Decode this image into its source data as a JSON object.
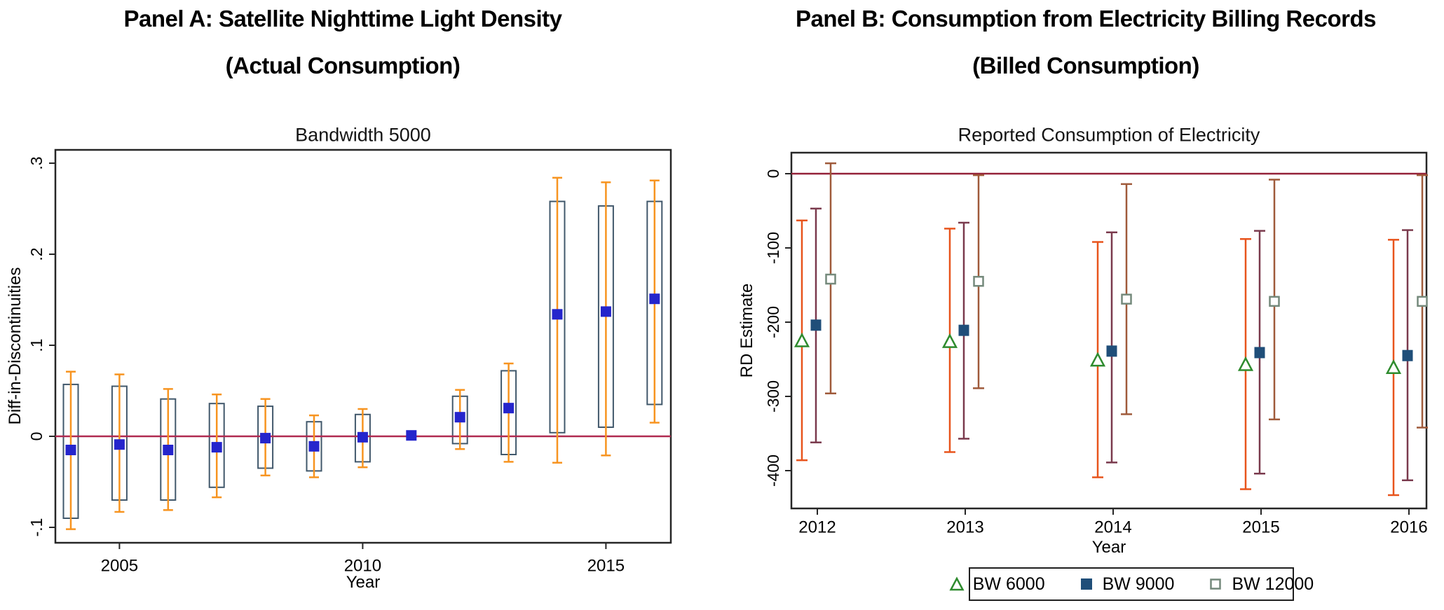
{
  "figure": {
    "background": "#ffffff"
  },
  "chart_data": [
    {
      "panel": "A",
      "type": "box-whisker",
      "panel_title_line1": "Panel A: Satellite Nighttime Light Density",
      "panel_title_line2": "(Actual Consumption)",
      "title": "Bandwidth 5000",
      "xlabel": "Year",
      "ylabel": "Diff-in-Discontinuities",
      "ylim": [
        -0.12,
        0.31
      ],
      "yticks": [
        {
          "v": 0.3,
          "label": ".3"
        },
        {
          "v": 0.2,
          "label": ".2"
        },
        {
          "v": 0.1,
          "label": ".1"
        },
        {
          "v": 0.0,
          "label": "0"
        },
        {
          "v": -0.1,
          "label": "-.1"
        }
      ],
      "xticks": [
        {
          "v": 2005,
          "label": "2005"
        },
        {
          "v": 2010,
          "label": "2010"
        },
        {
          "v": 2015,
          "label": "2015"
        }
      ],
      "ref_line_y": 0,
      "colors": {
        "whisker": "#f79420",
        "box_outline": "#41586b",
        "marker": "#2525cc",
        "ref_line": "#b02a50",
        "axis": "#262626"
      },
      "points": [
        {
          "year": 2004,
          "est": -0.015,
          "box": [
            -0.09,
            0.057
          ],
          "whisker": [
            -0.102,
            0.071
          ]
        },
        {
          "year": 2005,
          "est": -0.009,
          "box": [
            -0.07,
            0.055
          ],
          "whisker": [
            -0.083,
            0.068
          ]
        },
        {
          "year": 2006,
          "est": -0.015,
          "box": [
            -0.07,
            0.041
          ],
          "whisker": [
            -0.081,
            0.052
          ]
        },
        {
          "year": 2007,
          "est": -0.012,
          "box": [
            -0.056,
            0.036
          ],
          "whisker": [
            -0.067,
            0.046
          ]
        },
        {
          "year": 2008,
          "est": -0.002,
          "box": [
            -0.035,
            0.033
          ],
          "whisker": [
            -0.043,
            0.041
          ]
        },
        {
          "year": 2009,
          "est": -0.011,
          "box": [
            -0.038,
            0.016
          ],
          "whisker": [
            -0.045,
            0.023
          ]
        },
        {
          "year": 2010,
          "est": -0.001,
          "box": [
            -0.028,
            0.024
          ],
          "whisker": [
            -0.034,
            0.03
          ]
        },
        {
          "year": 2011,
          "est": 0.001,
          "box": null,
          "whisker": null
        },
        {
          "year": 2012,
          "est": 0.021,
          "box": [
            -0.008,
            0.044
          ],
          "whisker": [
            -0.014,
            0.051
          ]
        },
        {
          "year": 2013,
          "est": 0.031,
          "box": [
            -0.02,
            0.072
          ],
          "whisker": [
            -0.028,
            0.08
          ]
        },
        {
          "year": 2014,
          "est": 0.134,
          "box": [
            0.004,
            0.258
          ],
          "whisker": [
            -0.029,
            0.284
          ]
        },
        {
          "year": 2015,
          "est": 0.137,
          "box": [
            0.01,
            0.253
          ],
          "whisker": [
            -0.021,
            0.279
          ]
        },
        {
          "year": 2016,
          "est": 0.151,
          "box": [
            0.035,
            0.258
          ],
          "whisker": [
            0.015,
            0.281
          ]
        }
      ]
    },
    {
      "panel": "B",
      "type": "grouped-error-bars",
      "panel_title_line1": "Panel B: Consumption from Electricity Billing Records",
      "panel_title_line2": "(Billed Consumption)",
      "title": "Reported Consumption of Electricity",
      "xlabel": "Year",
      "ylabel": "RD Estimate",
      "ylim": [
        -450,
        25
      ],
      "yticks": [
        {
          "v": 0,
          "label": "0"
        },
        {
          "v": -100,
          "label": "-100"
        },
        {
          "v": -200,
          "label": "-200"
        },
        {
          "v": -300,
          "label": "-300"
        },
        {
          "v": -400,
          "label": "-400"
        }
      ],
      "xticks": [
        {
          "v": 2012,
          "label": "2012"
        },
        {
          "v": 2013,
          "label": "2013"
        },
        {
          "v": 2014,
          "label": "2014"
        },
        {
          "v": 2015,
          "label": "2015"
        },
        {
          "v": 2016,
          "label": "2016"
        }
      ],
      "ref_line_y": 0,
      "colors": {
        "ref_line": "#942138",
        "axis": "#262626"
      },
      "legend_position": "bottom-center",
      "series": [
        {
          "name": "BW 6000",
          "marker": "open-triangle",
          "marker_color": "#2e8b2e",
          "bar_color": "#e8541c",
          "points": [
            {
              "year": 2012,
              "est": -226,
              "ci": [
                -386,
                -63
              ]
            },
            {
              "year": 2013,
              "est": -227,
              "ci": [
                -375,
                -74
              ]
            },
            {
              "year": 2014,
              "est": -252,
              "ci": [
                -409,
                -92
              ]
            },
            {
              "year": 2015,
              "est": -258,
              "ci": [
                -425,
                -88
              ]
            },
            {
              "year": 2016,
              "est": -262,
              "ci": [
                -433,
                -89
              ]
            }
          ]
        },
        {
          "name": "BW 9000",
          "marker": "filled-square",
          "marker_color": "#1f4e79",
          "bar_color": "#7a3a4d",
          "points": [
            {
              "year": 2012,
              "est": -204,
              "ci": [
                -362,
                -47
              ]
            },
            {
              "year": 2013,
              "est": -211,
              "ci": [
                -357,
                -66
              ]
            },
            {
              "year": 2014,
              "est": -239,
              "ci": [
                -389,
                -79
              ]
            },
            {
              "year": 2015,
              "est": -241,
              "ci": [
                -404,
                -77
              ]
            },
            {
              "year": 2016,
              "est": -245,
              "ci": [
                -413,
                -76
              ]
            }
          ]
        },
        {
          "name": "BW 12000",
          "marker": "open-square",
          "marker_color": "#74897b",
          "bar_color": "#9f5a3a",
          "points": [
            {
              "year": 2012,
              "est": -142,
              "ci": [
                -296,
                14
              ]
            },
            {
              "year": 2013,
              "est": -145,
              "ci": [
                -289,
                -2
              ]
            },
            {
              "year": 2014,
              "est": -169,
              "ci": [
                -324,
                -14
              ]
            },
            {
              "year": 2015,
              "est": -172,
              "ci": [
                -331,
                -8
              ]
            },
            {
              "year": 2016,
              "est": -172,
              "ci": [
                -342,
                -2
              ]
            }
          ]
        }
      ]
    }
  ]
}
